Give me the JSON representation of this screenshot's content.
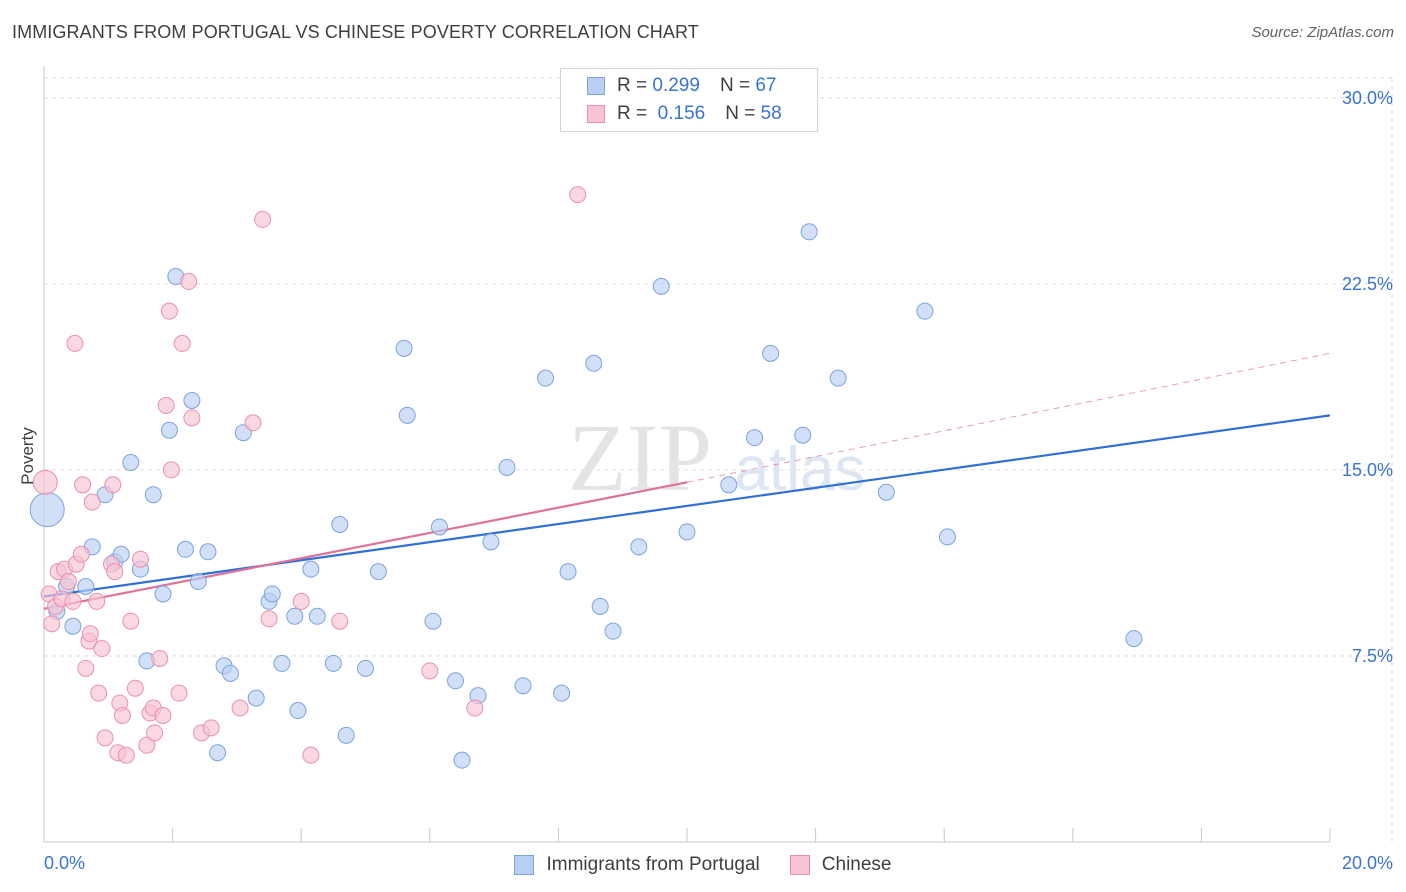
{
  "title": "IMMIGRANTS FROM PORTUGAL VS CHINESE POVERTY CORRELATION CHART",
  "source": "Source: ZipAtlas.com",
  "watermark": {
    "zip": "ZIP",
    "atlas": "atlas"
  },
  "legend": {
    "rows": [
      {
        "r_label": "R =",
        "r_value": "0.299",
        "n_label": "N =",
        "n_value": "67"
      },
      {
        "r_label": "R =",
        "r_value": "0.156",
        "n_label": "N =",
        "n_value": "58"
      }
    ]
  },
  "colors": {
    "portugal_fill": "#b9d0f2",
    "portugal_stroke": "#7aa3e0",
    "portugal_line": "#2f6fd6",
    "chinese_fill": "#f7c3d3",
    "chinese_stroke": "#ec8fac",
    "chinese_line": "#e0729a",
    "axis_text": "#3a73d1",
    "grid": "#dddddd"
  },
  "chart_data": {
    "type": "scatter",
    "title": "IMMIGRANTS FROM PORTUGAL VS CHINESE POVERTY CORRELATION CHART",
    "xlabel": "",
    "ylabel": "Poverty",
    "xlim": [
      0,
      20
    ],
    "ylim": [
      0,
      30.8
    ],
    "x_tick_labels": [
      "0.0%",
      "20.0%"
    ],
    "y_ticks": [
      7.5,
      15.0,
      22.5,
      30.0
    ],
    "y_tick_labels": [
      "7.5%",
      "15.0%",
      "22.5%",
      "30.0%"
    ],
    "grid": true,
    "legend_position": "top-center",
    "series": [
      {
        "name": "Immigrants from Portugal",
        "r": 0.299,
        "n": 67,
        "trend": {
          "x": [
            0,
            20
          ],
          "y": [
            9.9,
            17.2
          ]
        },
        "points": [
          {
            "x": 0.05,
            "y": 13.4,
            "size": "large"
          },
          {
            "x": 0.2,
            "y": 9.3
          },
          {
            "x": 0.35,
            "y": 10.3
          },
          {
            "x": 0.45,
            "y": 8.7
          },
          {
            "x": 0.65,
            "y": 10.3
          },
          {
            "x": 0.75,
            "y": 11.9
          },
          {
            "x": 0.95,
            "y": 14.0
          },
          {
            "x": 1.1,
            "y": 11.3
          },
          {
            "x": 1.2,
            "y": 11.6
          },
          {
            "x": 1.35,
            "y": 15.3
          },
          {
            "x": 1.5,
            "y": 11.0
          },
          {
            "x": 1.6,
            "y": 7.3
          },
          {
            "x": 1.7,
            "y": 14.0
          },
          {
            "x": 1.85,
            "y": 10.0
          },
          {
            "x": 1.95,
            "y": 16.6
          },
          {
            "x": 2.05,
            "y": 22.8
          },
          {
            "x": 2.2,
            "y": 11.8
          },
          {
            "x": 2.3,
            "y": 17.8
          },
          {
            "x": 2.4,
            "y": 10.5
          },
          {
            "x": 2.55,
            "y": 11.7
          },
          {
            "x": 2.7,
            "y": 3.6
          },
          {
            "x": 2.8,
            "y": 7.1
          },
          {
            "x": 2.9,
            "y": 6.8
          },
          {
            "x": 3.1,
            "y": 16.5
          },
          {
            "x": 3.3,
            "y": 5.8
          },
          {
            "x": 3.5,
            "y": 9.7
          },
          {
            "x": 3.55,
            "y": 10.0
          },
          {
            "x": 3.7,
            "y": 7.2
          },
          {
            "x": 3.9,
            "y": 9.1
          },
          {
            "x": 3.95,
            "y": 5.3
          },
          {
            "x": 4.15,
            "y": 11.0
          },
          {
            "x": 4.25,
            "y": 9.1
          },
          {
            "x": 4.5,
            "y": 7.2
          },
          {
            "x": 4.6,
            "y": 12.8
          },
          {
            "x": 4.7,
            "y": 4.3
          },
          {
            "x": 5.0,
            "y": 7.0
          },
          {
            "x": 5.2,
            "y": 10.9
          },
          {
            "x": 5.6,
            "y": 19.9
          },
          {
            "x": 5.65,
            "y": 17.2
          },
          {
            "x": 6.05,
            "y": 8.9
          },
          {
            "x": 6.15,
            "y": 12.7
          },
          {
            "x": 6.4,
            "y": 6.5
          },
          {
            "x": 6.5,
            "y": 3.3
          },
          {
            "x": 6.75,
            "y": 5.9
          },
          {
            "x": 6.95,
            "y": 12.1
          },
          {
            "x": 7.2,
            "y": 15.1
          },
          {
            "x": 7.45,
            "y": 6.3
          },
          {
            "x": 7.8,
            "y": 18.7
          },
          {
            "x": 8.05,
            "y": 6.0
          },
          {
            "x": 8.15,
            "y": 10.9
          },
          {
            "x": 8.55,
            "y": 19.3
          },
          {
            "x": 8.65,
            "y": 9.5
          },
          {
            "x": 8.85,
            "y": 8.5
          },
          {
            "x": 9.25,
            "y": 11.9
          },
          {
            "x": 9.6,
            "y": 22.4
          },
          {
            "x": 10.0,
            "y": 12.5
          },
          {
            "x": 10.65,
            "y": 14.4
          },
          {
            "x": 11.05,
            "y": 16.3
          },
          {
            "x": 11.3,
            "y": 19.7
          },
          {
            "x": 11.8,
            "y": 16.4
          },
          {
            "x": 11.9,
            "y": 24.6
          },
          {
            "x": 12.35,
            "y": 18.7
          },
          {
            "x": 13.1,
            "y": 14.1
          },
          {
            "x": 13.7,
            "y": 21.4
          },
          {
            "x": 14.05,
            "y": 12.3
          },
          {
            "x": 16.95,
            "y": 8.2
          }
        ]
      },
      {
        "name": "Chinese",
        "r": 0.156,
        "n": 58,
        "trend": {
          "x": [
            0,
            10
          ],
          "y": [
            9.4,
            14.5
          ]
        },
        "trend_dashed": {
          "x": [
            10,
            20
          ],
          "y": [
            14.5,
            19.7
          ]
        },
        "points": [
          {
            "x": 0.02,
            "y": 14.5,
            "size": "medium"
          },
          {
            "x": 0.08,
            "y": 10.0
          },
          {
            "x": 0.12,
            "y": 8.8
          },
          {
            "x": 0.18,
            "y": 9.5
          },
          {
            "x": 0.22,
            "y": 10.9
          },
          {
            "x": 0.28,
            "y": 9.8
          },
          {
            "x": 0.32,
            "y": 11.0
          },
          {
            "x": 0.38,
            "y": 10.5
          },
          {
            "x": 0.45,
            "y": 9.7
          },
          {
            "x": 0.5,
            "y": 11.2
          },
          {
            "x": 0.48,
            "y": 20.1
          },
          {
            "x": 0.58,
            "y": 11.6
          },
          {
            "x": 0.6,
            "y": 14.4
          },
          {
            "x": 0.65,
            "y": 7.0
          },
          {
            "x": 0.7,
            "y": 8.1
          },
          {
            "x": 0.72,
            "y": 8.4
          },
          {
            "x": 0.75,
            "y": 13.7
          },
          {
            "x": 0.82,
            "y": 9.7
          },
          {
            "x": 0.85,
            "y": 6.0
          },
          {
            "x": 0.9,
            "y": 7.8
          },
          {
            "x": 0.95,
            "y": 4.2
          },
          {
            "x": 1.05,
            "y": 11.2
          },
          {
            "x": 1.07,
            "y": 14.4
          },
          {
            "x": 1.1,
            "y": 10.9
          },
          {
            "x": 1.15,
            "y": 3.6
          },
          {
            "x": 1.18,
            "y": 5.6
          },
          {
            "x": 1.22,
            "y": 5.1
          },
          {
            "x": 1.28,
            "y": 3.5
          },
          {
            "x": 1.35,
            "y": 8.9
          },
          {
            "x": 1.42,
            "y": 6.2
          },
          {
            "x": 1.5,
            "y": 11.4
          },
          {
            "x": 1.6,
            "y": 3.9
          },
          {
            "x": 1.65,
            "y": 5.2
          },
          {
            "x": 1.7,
            "y": 5.4
          },
          {
            "x": 1.72,
            "y": 4.4
          },
          {
            "x": 1.8,
            "y": 7.4
          },
          {
            "x": 1.85,
            "y": 5.1
          },
          {
            "x": 1.9,
            "y": 17.6
          },
          {
            "x": 1.95,
            "y": 21.4
          },
          {
            "x": 1.98,
            "y": 15.0
          },
          {
            "x": 2.1,
            "y": 6.0
          },
          {
            "x": 2.15,
            "y": 20.1
          },
          {
            "x": 2.25,
            "y": 22.6
          },
          {
            "x": 2.3,
            "y": 17.1
          },
          {
            "x": 2.45,
            "y": 4.4
          },
          {
            "x": 2.6,
            "y": 4.6
          },
          {
            "x": 3.05,
            "y": 5.4
          },
          {
            "x": 3.25,
            "y": 16.9
          },
          {
            "x": 3.4,
            "y": 25.1
          },
          {
            "x": 3.5,
            "y": 9.0
          },
          {
            "x": 4.0,
            "y": 9.7
          },
          {
            "x": 4.15,
            "y": 3.5
          },
          {
            "x": 4.6,
            "y": 8.9
          },
          {
            "x": 6.0,
            "y": 6.9
          },
          {
            "x": 6.7,
            "y": 5.4
          },
          {
            "x": 8.3,
            "y": 26.1
          }
        ]
      }
    ]
  }
}
